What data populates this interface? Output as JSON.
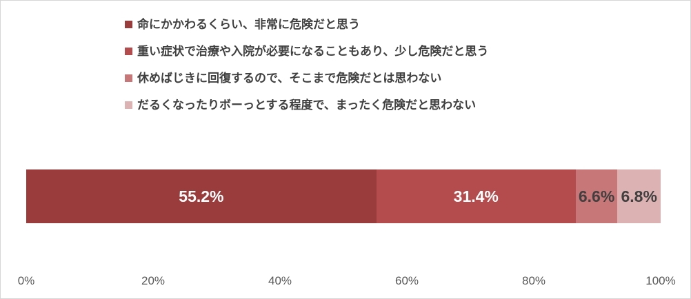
{
  "chart_data": {
    "type": "bar",
    "orientation": "horizontal-stacked",
    "title": "",
    "legend_position": "top-left",
    "grid": false,
    "x_axis": {
      "range": [
        0,
        100
      ],
      "tick_labels": [
        "0%",
        "20%",
        "40%",
        "60%",
        "80%",
        "100%"
      ],
      "tick_values": [
        0,
        20,
        40,
        60,
        80,
        100
      ],
      "tick_color": "#595959"
    },
    "series": [
      {
        "name": "命にかかわるくらい、非常に危険だと思う",
        "value": 55.2,
        "data_label": "55.2%",
        "color": "#9a3b3c",
        "label_color": "#ffffff"
      },
      {
        "name": "重い症状で治療や入院が必要になることもあり、少し危険だと思う",
        "value": 31.4,
        "data_label": "31.4%",
        "color": "#b44b4c",
        "label_color": "#ffffff"
      },
      {
        "name": "休めばじきに回復するので、そこまで危険だとは思わない",
        "value": 6.6,
        "data_label": "6.6%",
        "color": "#c87778",
        "label_color": "#404040"
      },
      {
        "name": "だるくなったりボーっとする程度で、まったく危険だと思わない",
        "value": 6.8,
        "data_label": "6.8%",
        "color": "#dcb2b3",
        "label_color": "#404040"
      }
    ]
  }
}
